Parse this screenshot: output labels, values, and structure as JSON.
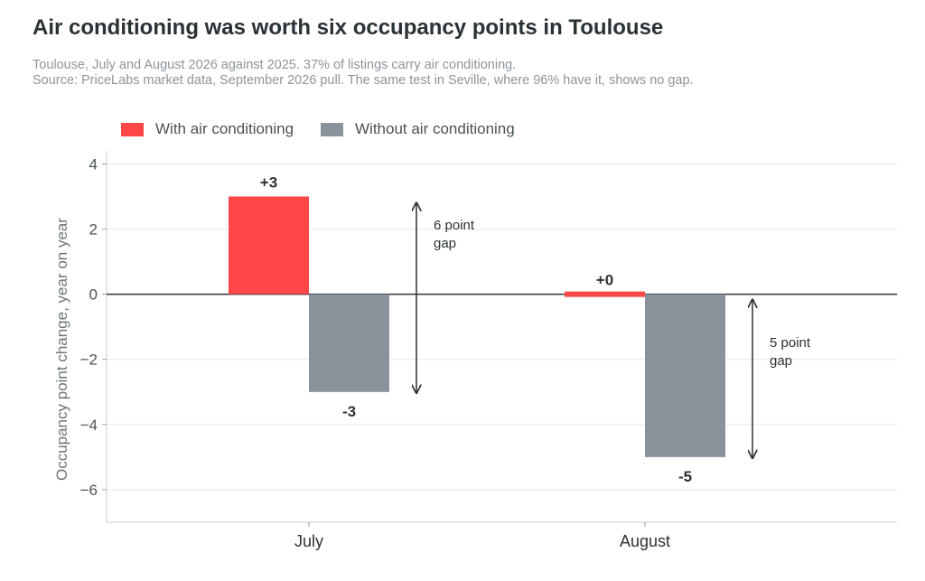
{
  "header": {
    "title": "Air conditioning was worth six occupancy points in Toulouse",
    "subtitle_line1": "Toulouse, July and August 2026 against 2025. 37% of listings carry air conditioning.",
    "subtitle_line2": "Source: PriceLabs market data, September 2026 pull. The same test in Seville, where 96% have it, shows no gap."
  },
  "chart_data": {
    "type": "bar",
    "title": "Air conditioning was worth six occupancy points in Toulouse",
    "categories": [
      "July",
      "August"
    ],
    "series": [
      {
        "name": "With air conditioning",
        "values": [
          3,
          0
        ],
        "labels": [
          "+3",
          "+0"
        ],
        "color": "#ff4747"
      },
      {
        "name": "Without air conditioning",
        "values": [
          -3,
          -5
        ],
        "labels": [
          "-3",
          "-5"
        ],
        "color": "#8a929b"
      }
    ],
    "xlabel": "",
    "ylabel": "Occupancy point change, year on year",
    "ylim": [
      -7,
      4.4
    ],
    "yticks": [
      4,
      2,
      0,
      -2,
      -4,
      -6
    ],
    "ytick_labels": [
      "4",
      "2",
      "0",
      "−2",
      "−4",
      "−6"
    ],
    "grid": true,
    "legend": "top-left",
    "annotations": [
      {
        "category": "July",
        "from": 3,
        "to": -3,
        "line1": "6 point",
        "line2": "gap"
      },
      {
        "category": "August",
        "from": 0,
        "to": -5,
        "line1": "5 point",
        "line2": "gap"
      }
    ]
  }
}
